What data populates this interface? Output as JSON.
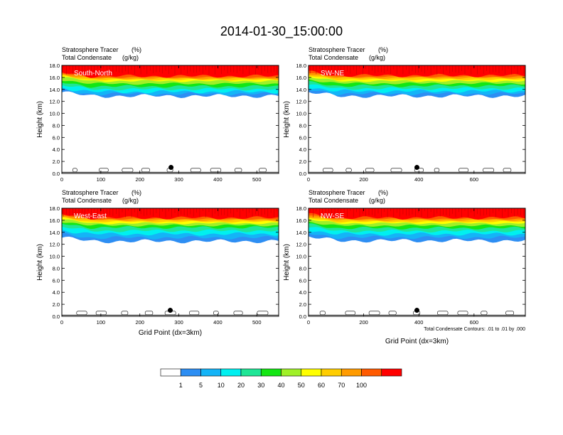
{
  "page_title": "2014-01-30_15:00:00",
  "colorbar": {
    "colors": [
      "#ffffff",
      "#2d8ef3",
      "#14b4f7",
      "#00f0f0",
      "#1ee696",
      "#14e614",
      "#a0f028",
      "#ffff00",
      "#ffcd00",
      "#ff9b00",
      "#ff5a00",
      "#ff0000"
    ],
    "labels": [
      "1",
      "5",
      "10",
      "20",
      "30",
      "40",
      "50",
      "60",
      "70",
      "100"
    ]
  },
  "chart_data": [
    {
      "type": "heatmap",
      "panel_label": "South-North",
      "header_left": [
        "Stratosphere Tracer",
        "Total Condensate"
      ],
      "header_right": [
        "(%)",
        "(g/kg)"
      ],
      "ylabel": "Height (km)",
      "xlabel": "",
      "footnote": "",
      "xlim": [
        0,
        556
      ],
      "ylim": [
        0,
        18
      ],
      "xticks": [
        "0",
        "100",
        "200",
        "300",
        "400",
        "500"
      ],
      "yticks": [
        "0.0",
        "2.0",
        "4.0",
        "6.0",
        "8.0",
        "10.0",
        "12.0",
        "14.0",
        "16.0",
        "18.0"
      ],
      "marker_x": 280,
      "marker_y": 1.0,
      "bands": {
        "red_base": 16.2,
        "orange_base": 15.8,
        "yellow_base": 15.4,
        "green_base": 14.5,
        "cyan_base": 13.6,
        "blue_base": 12.9
      }
    },
    {
      "type": "heatmap",
      "panel_label": "SW-NE",
      "header_left": [
        "Stratosphere Tracer",
        "Total Condensate"
      ],
      "header_right": [
        "(%)",
        "(g/kg)"
      ],
      "ylabel": "Height (km)",
      "xlabel": "",
      "footnote": "",
      "xlim": [
        0,
        786
      ],
      "ylim": [
        0,
        18
      ],
      "xticks": [
        "0",
        "200",
        "400",
        "600"
      ],
      "yticks": [
        "0.0",
        "2.0",
        "4.0",
        "6.0",
        "8.0",
        "10.0",
        "12.0",
        "14.0",
        "16.0",
        "18.0"
      ],
      "marker_x": 393,
      "marker_y": 1.0,
      "bands": {
        "red_base": 16.3,
        "orange_base": 15.9,
        "yellow_base": 15.4,
        "green_base": 14.6,
        "cyan_base": 13.7,
        "blue_base": 12.9
      }
    },
    {
      "type": "heatmap",
      "panel_label": "West-East",
      "header_left": [
        "Stratosphere Tracer",
        "Total Condensate"
      ],
      "header_right": [
        "(%)",
        "(g/kg)"
      ],
      "ylabel": "Height (km)",
      "xlabel": "Grid Point (dx=3km)",
      "footnote": "",
      "xlim": [
        0,
        556
      ],
      "ylim": [
        0,
        18
      ],
      "xticks": [
        "0",
        "100",
        "200",
        "300",
        "400",
        "500"
      ],
      "yticks": [
        "0.0",
        "2.0",
        "4.0",
        "6.0",
        "8.0",
        "10.0",
        "12.0",
        "14.0",
        "16.0",
        "18.0"
      ],
      "marker_x": 278,
      "marker_y": 1.0,
      "bands": {
        "red_base": 16.4,
        "orange_base": 16.0,
        "yellow_base": 15.5,
        "green_base": 14.8,
        "cyan_base": 13.7,
        "blue_base": 12.5
      }
    },
    {
      "type": "heatmap",
      "panel_label": "NW-SE",
      "header_left": [
        "Stratosphere Tracer",
        "Total Condensate"
      ],
      "header_right": [
        "(%)",
        "(g/kg)"
      ],
      "ylabel": "Height (km)",
      "xlabel": "Grid Point (dx=3km)",
      "footnote": "Total Condensate Contours: .01 to .01 by .000",
      "xlim": [
        0,
        786
      ],
      "ylim": [
        0,
        18
      ],
      "xticks": [
        "0",
        "200",
        "400",
        "600"
      ],
      "yticks": [
        "0.0",
        "2.0",
        "4.0",
        "6.0",
        "8.0",
        "10.0",
        "12.0",
        "14.0",
        "16.0",
        "18.0"
      ],
      "marker_x": 393,
      "marker_y": 1.0,
      "bands": {
        "red_base": 16.4,
        "orange_base": 16.0,
        "yellow_base": 15.5,
        "green_base": 14.7,
        "cyan_base": 13.7,
        "blue_base": 12.6
      }
    }
  ]
}
